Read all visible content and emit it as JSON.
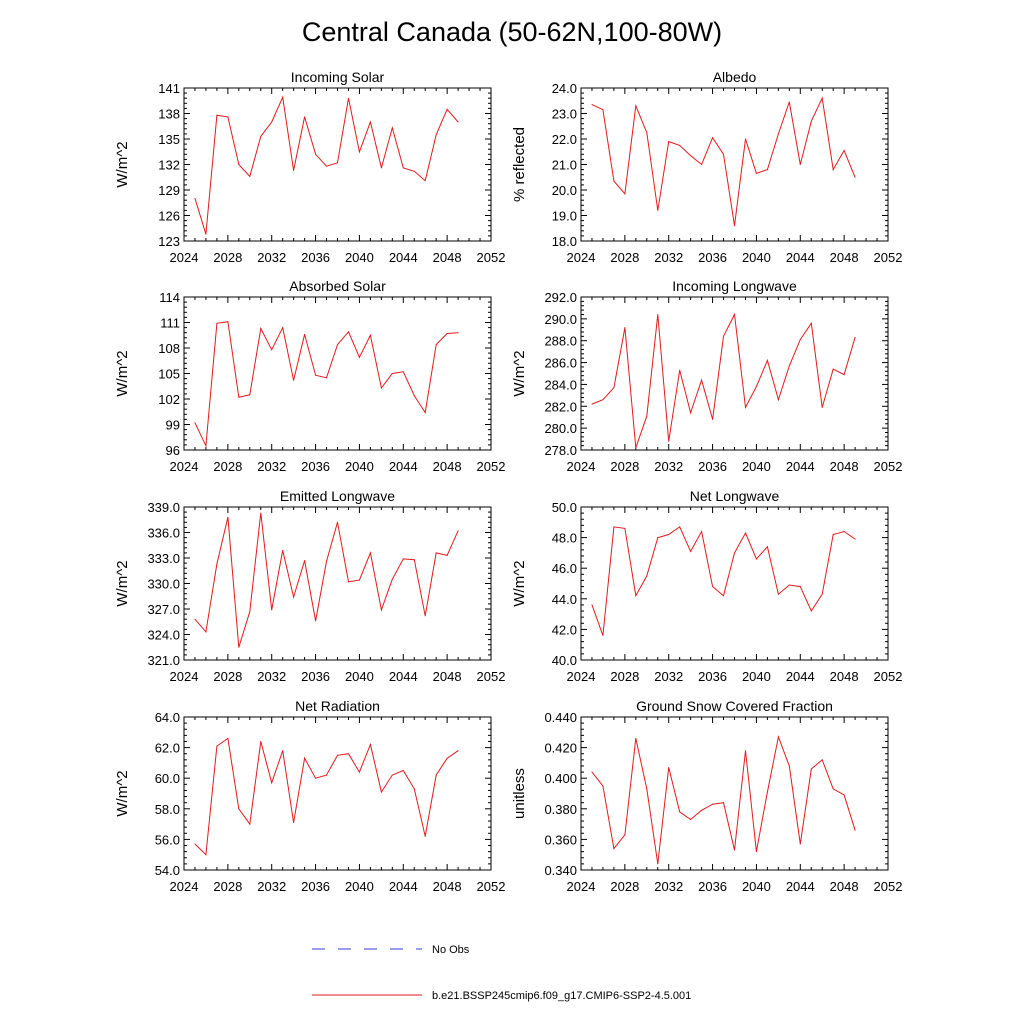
{
  "figure": {
    "title": "Central Canada (50-62N,100-80W)"
  },
  "legend": {
    "items": [
      {
        "label": "No Obs",
        "color": "#3a3adf",
        "style": "dashed"
      },
      {
        "label": "b.e21.BSSP245cmip6.f09_g17.CMIP6-SSP2-4.5.001",
        "color": "#e31a1c",
        "style": "solid"
      }
    ]
  },
  "colors": {
    "series": "#e31a1c",
    "axis": "#000000"
  },
  "chart_data": [
    {
      "type": "line",
      "title": "Incoming Solar",
      "ylabel": "W/m^2",
      "xlim": [
        2024,
        2052
      ],
      "xticks": [
        2024,
        2028,
        2032,
        2036,
        2040,
        2044,
        2048,
        2052
      ],
      "ylim": [
        123,
        141
      ],
      "yticks": [
        "123",
        "126",
        "129",
        "132",
        "135",
        "138",
        "141"
      ],
      "x": [
        2025,
        2026,
        2027,
        2028,
        2029,
        2030,
        2031,
        2032,
        2033,
        2034,
        2035,
        2036,
        2037,
        2038,
        2039,
        2040,
        2041,
        2042,
        2043,
        2044,
        2045,
        2046,
        2047,
        2048,
        2049
      ],
      "series": [
        {
          "name": "b.e21.BSSP245cmip6.f09_g17.CMIP6-SSP2-4.5.001",
          "values": [
            128.0,
            123.8,
            137.8,
            137.6,
            132.0,
            130.6,
            135.3,
            137.0,
            139.9,
            131.3,
            137.6,
            133.2,
            131.8,
            132.2,
            139.8,
            133.5,
            137.0,
            131.6,
            136.3,
            131.6,
            131.2,
            130.1,
            135.5,
            138.5,
            137.0
          ]
        }
      ]
    },
    {
      "type": "line",
      "title": "Albedo",
      "ylabel": "% reflected",
      "xlim": [
        2024,
        2052
      ],
      "xticks": [
        2024,
        2028,
        2032,
        2036,
        2040,
        2044,
        2048,
        2052
      ],
      "ylim": [
        18.0,
        24.0
      ],
      "yticks": [
        "18.0",
        "19.0",
        "20.0",
        "21.0",
        "22.0",
        "23.0",
        "24.0"
      ],
      "x": [
        2025,
        2026,
        2027,
        2028,
        2029,
        2030,
        2031,
        2032,
        2033,
        2034,
        2035,
        2036,
        2037,
        2038,
        2039,
        2040,
        2041,
        2042,
        2043,
        2044,
        2045,
        2046,
        2047,
        2048,
        2049
      ],
      "series": [
        {
          "name": "b.e21.BSSP245cmip6.f09_g17.CMIP6-SSP2-4.5.001",
          "values": [
            23.35,
            23.15,
            20.35,
            19.85,
            23.3,
            22.25,
            19.2,
            21.9,
            21.75,
            21.35,
            21.0,
            22.05,
            21.4,
            18.6,
            22.0,
            20.65,
            20.8,
            22.2,
            23.45,
            21.0,
            22.7,
            23.6,
            20.8,
            21.55,
            20.5
          ]
        }
      ]
    },
    {
      "type": "line",
      "title": "Absorbed Solar",
      "ylabel": "W/m^2",
      "xlim": [
        2024,
        2052
      ],
      "xticks": [
        2024,
        2028,
        2032,
        2036,
        2040,
        2044,
        2048,
        2052
      ],
      "ylim": [
        96,
        114
      ],
      "yticks": [
        "96",
        "99",
        "102",
        "105",
        "108",
        "111",
        "114"
      ],
      "x": [
        2025,
        2026,
        2027,
        2028,
        2029,
        2030,
        2031,
        2032,
        2033,
        2034,
        2035,
        2036,
        2037,
        2038,
        2039,
        2040,
        2041,
        2042,
        2043,
        2044,
        2045,
        2046,
        2047,
        2048,
        2049
      ],
      "series": [
        {
          "name": "b.e21.BSSP245cmip6.f09_g17.CMIP6-SSP2-4.5.001",
          "values": [
            99.2,
            96.5,
            110.9,
            111.1,
            102.2,
            102.5,
            110.3,
            107.8,
            110.4,
            104.2,
            109.6,
            104.8,
            104.5,
            108.4,
            109.9,
            106.9,
            109.5,
            103.3,
            105.0,
            105.2,
            102.4,
            100.4,
            108.4,
            109.7,
            109.8
          ]
        }
      ]
    },
    {
      "type": "line",
      "title": "Incoming Longwave",
      "ylabel": "W/m^2",
      "xlim": [
        2024,
        2052
      ],
      "xticks": [
        2024,
        2028,
        2032,
        2036,
        2040,
        2044,
        2048,
        2052
      ],
      "ylim": [
        278.0,
        292.0
      ],
      "yticks": [
        "278.0",
        "280.0",
        "282.0",
        "284.0",
        "286.0",
        "288.0",
        "290.0",
        "292.0"
      ],
      "x": [
        2025,
        2026,
        2027,
        2028,
        2029,
        2030,
        2031,
        2032,
        2033,
        2034,
        2035,
        2036,
        2037,
        2038,
        2039,
        2040,
        2041,
        2042,
        2043,
        2044,
        2045,
        2046,
        2047,
        2048,
        2049
      ],
      "series": [
        {
          "name": "b.e21.BSSP245cmip6.f09_g17.CMIP6-SSP2-4.5.001",
          "values": [
            282.2,
            282.6,
            283.7,
            289.2,
            278.2,
            281.1,
            290.4,
            278.8,
            285.3,
            281.4,
            284.4,
            280.8,
            288.4,
            290.4,
            281.9,
            283.8,
            286.2,
            282.6,
            285.7,
            288.1,
            289.6,
            281.9,
            285.4,
            284.9,
            288.3
          ]
        }
      ]
    },
    {
      "type": "line",
      "title": "Emitted Longwave",
      "ylabel": "W/m^2",
      "xlim": [
        2024,
        2052
      ],
      "xticks": [
        2024,
        2028,
        2032,
        2036,
        2040,
        2044,
        2048,
        2052
      ],
      "ylim": [
        321.0,
        339.0
      ],
      "yticks": [
        "321.0",
        "324.0",
        "327.0",
        "330.0",
        "333.0",
        "336.0",
        "339.0"
      ],
      "x": [
        2025,
        2026,
        2027,
        2028,
        2029,
        2030,
        2031,
        2032,
        2033,
        2034,
        2035,
        2036,
        2037,
        2038,
        2039,
        2040,
        2041,
        2042,
        2043,
        2044,
        2045,
        2046,
        2047,
        2048,
        2049
      ],
      "series": [
        {
          "name": "b.e21.BSSP245cmip6.f09_g17.CMIP6-SSP2-4.5.001",
          "values": [
            325.8,
            324.3,
            332.3,
            337.8,
            322.5,
            326.7,
            338.3,
            326.9,
            333.9,
            328.4,
            332.7,
            325.6,
            332.6,
            337.2,
            330.2,
            330.4,
            333.6,
            326.9,
            330.5,
            332.9,
            332.8,
            326.2,
            333.6,
            333.3,
            336.2
          ]
        }
      ]
    },
    {
      "type": "line",
      "title": "Net Longwave",
      "ylabel": "W/m^2",
      "xlim": [
        2024,
        2052
      ],
      "xticks": [
        2024,
        2028,
        2032,
        2036,
        2040,
        2044,
        2048,
        2052
      ],
      "ylim": [
        40.0,
        50.0
      ],
      "yticks": [
        "40.0",
        "42.0",
        "44.0",
        "46.0",
        "48.0",
        "50.0"
      ],
      "x": [
        2025,
        2026,
        2027,
        2028,
        2029,
        2030,
        2031,
        2032,
        2033,
        2034,
        2035,
        2036,
        2037,
        2038,
        2039,
        2040,
        2041,
        2042,
        2043,
        2044,
        2045,
        2046,
        2047,
        2048,
        2049
      ],
      "series": [
        {
          "name": "b.e21.BSSP245cmip6.f09_g17.CMIP6-SSP2-4.5.001",
          "values": [
            43.6,
            41.6,
            48.7,
            48.6,
            44.2,
            45.5,
            48.0,
            48.2,
            48.7,
            47.1,
            48.4,
            44.8,
            44.2,
            47.0,
            48.3,
            46.6,
            47.4,
            44.3,
            44.9,
            44.8,
            43.2,
            44.3,
            48.2,
            48.4,
            47.9
          ]
        }
      ]
    },
    {
      "type": "line",
      "title": "Net Radiation",
      "ylabel": "W/m^2",
      "xlim": [
        2024,
        2052
      ],
      "xticks": [
        2024,
        2028,
        2032,
        2036,
        2040,
        2044,
        2048,
        2052
      ],
      "ylim": [
        54.0,
        64.0
      ],
      "yticks": [
        "54.0",
        "56.0",
        "58.0",
        "60.0",
        "62.0",
        "64.0"
      ],
      "x": [
        2025,
        2026,
        2027,
        2028,
        2029,
        2030,
        2031,
        2032,
        2033,
        2034,
        2035,
        2036,
        2037,
        2038,
        2039,
        2040,
        2041,
        2042,
        2043,
        2044,
        2045,
        2046,
        2047,
        2048,
        2049
      ],
      "series": [
        {
          "name": "b.e21.BSSP245cmip6.f09_g17.CMIP6-SSP2-4.5.001",
          "values": [
            55.7,
            55.0,
            62.1,
            62.6,
            58.0,
            57.0,
            62.4,
            59.7,
            61.8,
            57.1,
            61.3,
            60.0,
            60.2,
            61.5,
            61.6,
            60.4,
            62.2,
            59.1,
            60.2,
            60.5,
            59.3,
            56.2,
            60.2,
            61.3,
            61.8
          ]
        }
      ]
    },
    {
      "type": "line",
      "title": "Ground Snow Covered Fraction",
      "ylabel": "unitless",
      "xlim": [
        2024,
        2052
      ],
      "xticks": [
        2024,
        2028,
        2032,
        2036,
        2040,
        2044,
        2048,
        2052
      ],
      "ylim": [
        0.34,
        0.44
      ],
      "yticks": [
        "0.340",
        "0.360",
        "0.380",
        "0.400",
        "0.420",
        "0.440"
      ],
      "x": [
        2025,
        2026,
        2027,
        2028,
        2029,
        2030,
        2031,
        2032,
        2033,
        2034,
        2035,
        2036,
        2037,
        2038,
        2039,
        2040,
        2041,
        2042,
        2043,
        2044,
        2045,
        2046,
        2047,
        2048,
        2049
      ],
      "series": [
        {
          "name": "b.e21.BSSP245cmip6.f09_g17.CMIP6-SSP2-4.5.001",
          "values": [
            0.404,
            0.395,
            0.354,
            0.363,
            0.426,
            0.393,
            0.344,
            0.407,
            0.378,
            0.373,
            0.379,
            0.383,
            0.384,
            0.353,
            0.418,
            0.352,
            0.391,
            0.427,
            0.408,
            0.357,
            0.406,
            0.412,
            0.393,
            0.389,
            0.366
          ]
        }
      ]
    }
  ]
}
